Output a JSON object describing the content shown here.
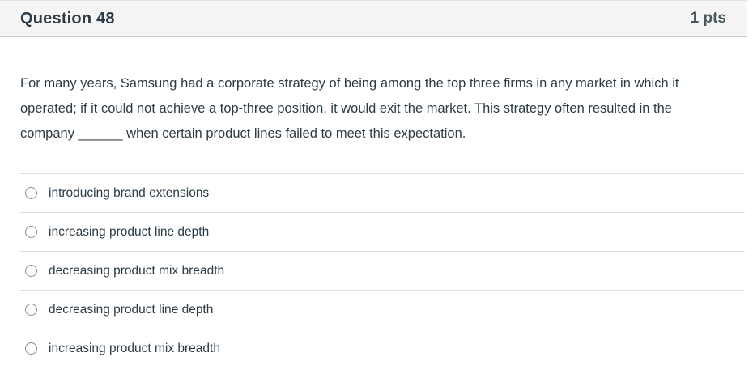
{
  "question": {
    "title": "Question 48",
    "points": "1 pts",
    "body": "For many years, Samsung had a corporate strategy of being among the top three firms in any market in which it operated; if it could not achieve a top-three position, it would exit the market. This strategy often resulted in the company ______ when certain product lines failed to meet this expectation.",
    "options": [
      {
        "label": "introducing brand extensions",
        "selected": false
      },
      {
        "label": "increasing product line depth",
        "selected": false
      },
      {
        "label": "decreasing product mix breadth",
        "selected": false
      },
      {
        "label": "decreasing product line depth",
        "selected": false
      },
      {
        "label": "increasing product mix breadth",
        "selected": false
      }
    ]
  },
  "colors": {
    "header_bg": "#f5f5f5",
    "panel_border": "#c7cdd1",
    "divider": "#dfdfdf",
    "text": "#2d3b45",
    "radio_border": "#8b8b8b"
  }
}
